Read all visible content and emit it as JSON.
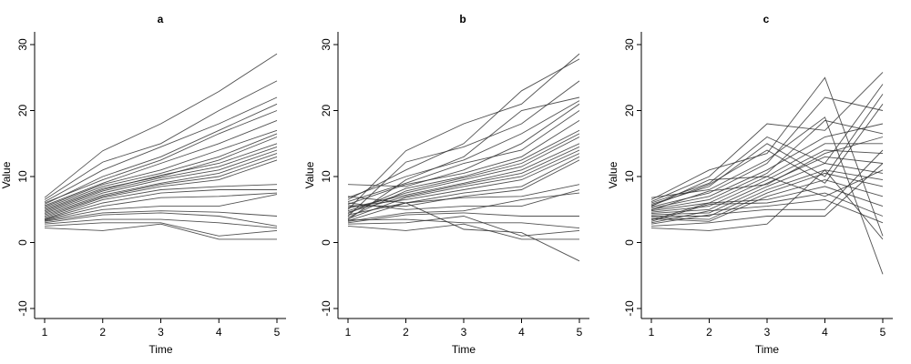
{
  "chart_data": [
    {
      "type": "line",
      "title": "a",
      "xlabel": "Time",
      "ylabel": "Value",
      "x": [
        1,
        2,
        3,
        4,
        5
      ],
      "xticks": [
        "1",
        "2",
        "3",
        "4",
        "5"
      ],
      "ylim": [
        -12,
        32
      ],
      "yticks": [
        "-10",
        "0",
        "10",
        "20",
        "30"
      ],
      "grid": false,
      "legend": "none",
      "line_color": "#333333",
      "series": [
        {
          "values": [
            6.8,
            13.9,
            18.0,
            22.9,
            28.6
          ]
        },
        {
          "values": [
            6.5,
            12.2,
            15.0,
            20.0,
            24.5
          ]
        },
        {
          "values": [
            6.2,
            11.0,
            14.5,
            18.0,
            22.0
          ]
        },
        {
          "values": [
            5.8,
            10.0,
            13.0,
            17.0,
            21.0
          ]
        },
        {
          "values": [
            6.0,
            9.5,
            12.5,
            16.5,
            20.0
          ]
        },
        {
          "values": [
            5.6,
            9.0,
            12.0,
            15.0,
            18.5
          ]
        },
        {
          "values": [
            5.4,
            8.8,
            11.0,
            14.0,
            17.0
          ]
        },
        {
          "values": [
            5.2,
            8.5,
            10.5,
            13.0,
            16.5
          ]
        },
        {
          "values": [
            5.0,
            8.2,
            10.0,
            12.5,
            16.0
          ]
        },
        {
          "values": [
            4.8,
            8.0,
            10.2,
            12.0,
            15.0
          ]
        },
        {
          "values": [
            4.6,
            7.8,
            9.8,
            11.5,
            14.5
          ]
        },
        {
          "values": [
            4.4,
            7.5,
            9.5,
            11.0,
            14.0
          ]
        },
        {
          "values": [
            4.2,
            7.2,
            9.0,
            10.5,
            13.5
          ]
        },
        {
          "values": [
            4.0,
            7.0,
            8.8,
            10.0,
            13.0
          ]
        },
        {
          "values": [
            3.8,
            6.8,
            8.5,
            9.5,
            12.5
          ]
        },
        {
          "values": [
            3.6,
            6.5,
            8.0,
            8.5,
            8.8
          ]
        },
        {
          "values": [
            3.5,
            6.0,
            7.5,
            8.0,
            8.0
          ]
        },
        {
          "values": [
            3.4,
            5.5,
            6.8,
            7.0,
            7.5
          ]
        },
        {
          "values": [
            3.3,
            5.0,
            5.5,
            5.5,
            7.3
          ]
        },
        {
          "values": [
            3.2,
            4.5,
            4.8,
            4.6,
            4.0
          ]
        },
        {
          "values": [
            3.0,
            4.2,
            4.5,
            4.0,
            2.5
          ]
        },
        {
          "values": [
            2.8,
            3.5,
            3.5,
            3.0,
            2.2
          ]
        },
        {
          "values": [
            2.5,
            3.0,
            3.0,
            1.0,
            1.8
          ]
        },
        {
          "values": [
            2.2,
            1.8,
            2.8,
            0.5,
            0.5
          ]
        }
      ]
    },
    {
      "type": "line",
      "title": "b",
      "xlabel": "Time",
      "ylabel": "Value",
      "x": [
        1,
        2,
        3,
        4,
        5
      ],
      "xticks": [
        "1",
        "2",
        "3",
        "4",
        "5"
      ],
      "ylim": [
        -12,
        32
      ],
      "yticks": [
        "-10",
        "0",
        "10",
        "20",
        "30"
      ],
      "grid": false,
      "legend": "none",
      "line_color": "#333333",
      "series": [
        {
          "values": [
            5.0,
            13.9,
            18.0,
            21.0,
            28.6
          ]
        },
        {
          "values": [
            6.5,
            11.0,
            15.0,
            23.0,
            27.8
          ]
        },
        {
          "values": [
            4.0,
            12.2,
            14.5,
            18.0,
            24.5
          ]
        },
        {
          "values": [
            3.5,
            9.5,
            13.0,
            20.0,
            22.0
          ]
        },
        {
          "values": [
            6.8,
            10.0,
            12.5,
            16.5,
            21.5
          ]
        },
        {
          "values": [
            8.8,
            8.5,
            11.0,
            15.0,
            21.0
          ]
        },
        {
          "values": [
            6.2,
            9.0,
            12.0,
            14.0,
            20.0
          ]
        },
        {
          "values": [
            5.8,
            8.8,
            10.5,
            13.0,
            18.5
          ]
        },
        {
          "values": [
            4.4,
            8.2,
            10.0,
            12.5,
            17.0
          ]
        },
        {
          "values": [
            3.8,
            7.8,
            9.8,
            12.0,
            16.5
          ]
        },
        {
          "values": [
            4.8,
            7.5,
            9.5,
            11.5,
            16.0
          ]
        },
        {
          "values": [
            5.2,
            7.2,
            9.0,
            11.0,
            15.0
          ]
        },
        {
          "values": [
            4.6,
            7.0,
            8.8,
            10.5,
            14.5
          ]
        },
        {
          "values": [
            3.6,
            6.8,
            8.5,
            10.0,
            14.0
          ]
        },
        {
          "values": [
            5.4,
            6.5,
            8.0,
            9.5,
            13.5
          ]
        },
        {
          "values": [
            4.2,
            6.0,
            7.5,
            8.5,
            13.0
          ]
        },
        {
          "values": [
            5.6,
            5.5,
            7.0,
            8.0,
            12.5
          ]
        },
        {
          "values": [
            3.3,
            6.0,
            6.8,
            7.0,
            8.8
          ]
        },
        {
          "values": [
            6.0,
            5.0,
            5.5,
            5.5,
            8.0
          ]
        },
        {
          "values": [
            3.2,
            4.5,
            4.8,
            6.5,
            7.5
          ]
        },
        {
          "values": [
            3.0,
            4.2,
            4.5,
            4.0,
            4.0
          ]
        },
        {
          "values": [
            3.4,
            3.5,
            3.0,
            3.0,
            2.2
          ]
        },
        {
          "values": [
            2.8,
            3.0,
            4.0,
            1.0,
            1.8
          ]
        },
        {
          "values": [
            2.5,
            1.8,
            2.8,
            0.5,
            0.5
          ]
        },
        {
          "values": [
            7.0,
            6.0,
            2.0,
            1.5,
            -2.8
          ]
        }
      ]
    },
    {
      "type": "line",
      "title": "c",
      "xlabel": "Time",
      "ylabel": "Value",
      "x": [
        1,
        2,
        3,
        4,
        5
      ],
      "xticks": [
        "1",
        "2",
        "3",
        "4",
        "5"
      ],
      "ylim": [
        -12,
        32
      ],
      "yticks": [
        "-10",
        "0",
        "10",
        "20",
        "30"
      ],
      "grid": false,
      "legend": "none",
      "line_color": "#333333",
      "series": [
        {
          "values": [
            6.5,
            11.0,
            13.5,
            25.0,
            1.0
          ]
        },
        {
          "values": [
            6.2,
            10.0,
            18.0,
            17.0,
            25.8
          ]
        },
        {
          "values": [
            6.0,
            9.0,
            16.0,
            12.0,
            24.0
          ]
        },
        {
          "values": [
            5.8,
            8.5,
            15.0,
            10.0,
            22.5
          ]
        },
        {
          "values": [
            5.6,
            8.8,
            14.0,
            9.0,
            21.0
          ]
        },
        {
          "values": [
            5.4,
            7.5,
            12.0,
            22.0,
            20.0
          ]
        },
        {
          "values": [
            5.2,
            7.0,
            11.0,
            16.0,
            18.0
          ]
        },
        {
          "values": [
            5.0,
            6.5,
            10.5,
            18.5,
            16.5
          ]
        },
        {
          "values": [
            4.8,
            6.0,
            10.0,
            15.0,
            15.0
          ]
        },
        {
          "values": [
            4.6,
            5.5,
            9.5,
            14.0,
            13.5
          ]
        },
        {
          "values": [
            4.4,
            5.0,
            9.0,
            13.0,
            12.0
          ]
        },
        {
          "values": [
            4.2,
            4.5,
            8.5,
            12.0,
            10.5
          ]
        },
        {
          "values": [
            4.0,
            4.0,
            8.0,
            11.0,
            9.5
          ]
        },
        {
          "values": [
            3.8,
            3.5,
            7.5,
            10.5,
            8.5
          ]
        },
        {
          "values": [
            3.6,
            3.2,
            7.0,
            9.5,
            7.0
          ]
        },
        {
          "values": [
            3.4,
            6.0,
            6.5,
            8.5,
            5.5
          ]
        },
        {
          "values": [
            3.2,
            5.8,
            6.0,
            7.5,
            4.0
          ]
        },
        {
          "values": [
            3.0,
            4.8,
            5.5,
            6.5,
            3.0
          ]
        },
        {
          "values": [
            2.8,
            4.2,
            5.0,
            5.0,
            14.0
          ]
        },
        {
          "values": [
            2.5,
            3.0,
            4.0,
            4.0,
            12.0
          ]
        },
        {
          "values": [
            2.2,
            1.8,
            2.8,
            11.0,
            0.5
          ]
        },
        {
          "values": [
            6.8,
            8.0,
            12.5,
            19.0,
            -4.8
          ]
        },
        {
          "values": [
            5.5,
            9.5,
            10.0,
            7.0,
            11.0
          ]
        },
        {
          "values": [
            4.9,
            7.8,
            8.8,
            13.5,
            16.0
          ]
        }
      ]
    }
  ]
}
